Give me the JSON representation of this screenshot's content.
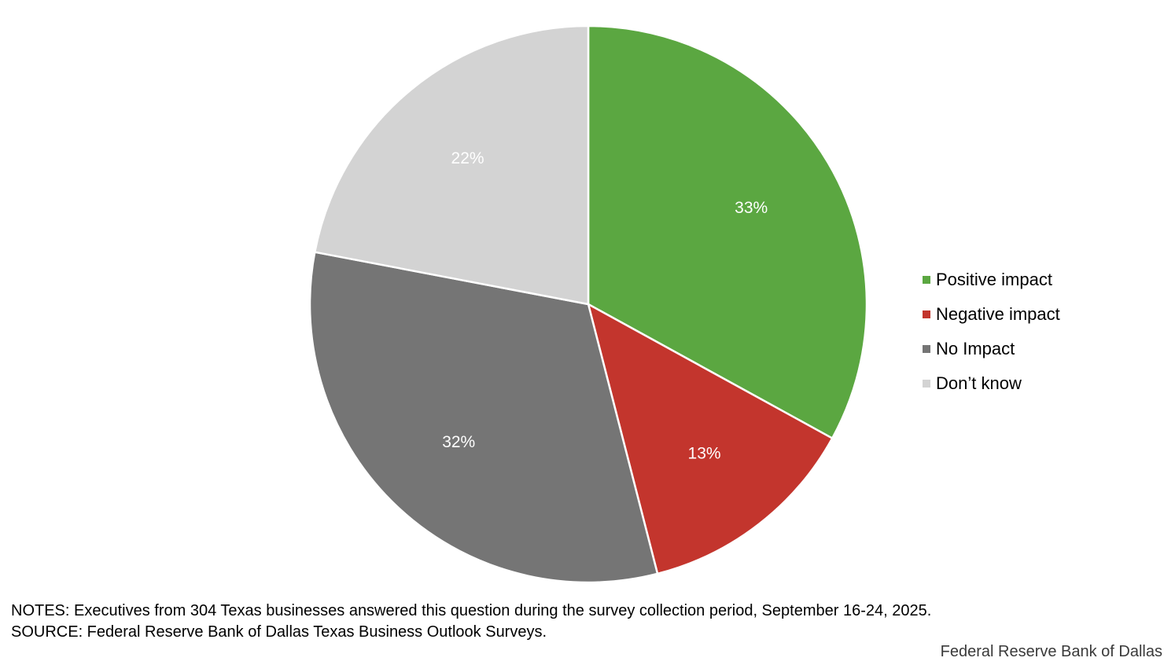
{
  "chart_data": {
    "type": "pie",
    "categories": [
      "Positive impact",
      "Negative impact",
      "No Impact",
      "Don’t know"
    ],
    "values": [
      33,
      13,
      32,
      22
    ],
    "data_labels": [
      "33%",
      "13%",
      "32%",
      "22%"
    ],
    "colors": [
      "#5ba741",
      "#c3352d",
      "#757575",
      "#d3d3d3"
    ],
    "legend_placement": "right"
  },
  "notes": {
    "line1": "NOTES: Executives from 304 Texas businesses answered this question during the survey collection period, September 16-24, 2025.",
    "line2": "SOURCE: Federal Reserve Bank of Dallas Texas Business Outlook Surveys."
  },
  "credit": "Federal Reserve Bank of Dallas"
}
